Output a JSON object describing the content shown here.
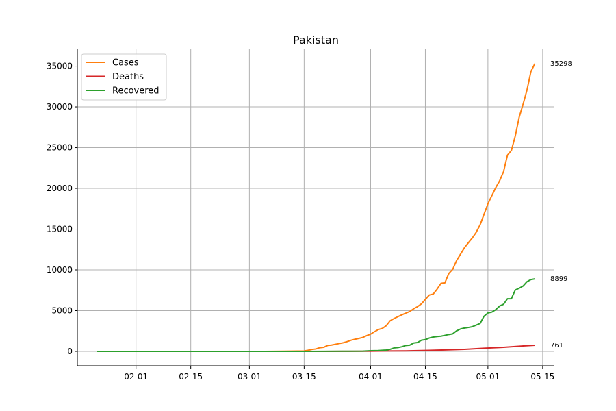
{
  "chart_data": {
    "type": "line",
    "title": "Pakistan",
    "xlabel": "",
    "ylabel": "",
    "x_axis": {
      "type": "date",
      "range": [
        "2020-01-17",
        "2020-05-18"
      ],
      "ticks": [
        "2020-02-01",
        "2020-02-15",
        "2020-03-01",
        "2020-03-15",
        "2020-04-01",
        "2020-04-15",
        "2020-05-01",
        "2020-05-15"
      ],
      "tick_labels": [
        "02-01",
        "02-15",
        "03-01",
        "03-15",
        "04-01",
        "04-15",
        "05-01",
        "05-15"
      ]
    },
    "y_axis": {
      "range": [
        -1765,
        37063
      ],
      "ticks": [
        0,
        5000,
        10000,
        15000,
        20000,
        25000,
        30000,
        35000
      ],
      "tick_labels": [
        "0",
        "5000",
        "10000",
        "15000",
        "20000",
        "25000",
        "30000",
        "35000"
      ]
    },
    "grid": true,
    "legend_position": "top-left",
    "series": [
      {
        "name": "Cases",
        "color": "#ff7f0e",
        "end_label": "35298",
        "points": [
          [
            "2020-01-22",
            0
          ],
          [
            "2020-02-25",
            0
          ],
          [
            "2020-03-01",
            4
          ],
          [
            "2020-03-05",
            5
          ],
          [
            "2020-03-10",
            19
          ],
          [
            "2020-03-15",
            53
          ],
          [
            "2020-03-16",
            136
          ],
          [
            "2020-03-17",
            236
          ],
          [
            "2020-03-18",
            299
          ],
          [
            "2020-03-19",
            454
          ],
          [
            "2020-03-20",
            501
          ],
          [
            "2020-03-21",
            730
          ],
          [
            "2020-03-22",
            776
          ],
          [
            "2020-03-23",
            875
          ],
          [
            "2020-03-24",
            972
          ],
          [
            "2020-03-25",
            1063
          ],
          [
            "2020-03-26",
            1201
          ],
          [
            "2020-03-27",
            1373
          ],
          [
            "2020-03-28",
            1495
          ],
          [
            "2020-03-29",
            1597
          ],
          [
            "2020-03-30",
            1717
          ],
          [
            "2020-03-31",
            1938
          ],
          [
            "2020-04-01",
            2118
          ],
          [
            "2020-04-02",
            2421
          ],
          [
            "2020-04-03",
            2686
          ],
          [
            "2020-04-04",
            2818
          ],
          [
            "2020-04-05",
            3157
          ],
          [
            "2020-04-06",
            3766
          ],
          [
            "2020-04-07",
            4035
          ],
          [
            "2020-04-08",
            4263
          ],
          [
            "2020-04-09",
            4489
          ],
          [
            "2020-04-10",
            4695
          ],
          [
            "2020-04-11",
            4892
          ],
          [
            "2020-04-12",
            5230
          ],
          [
            "2020-04-13",
            5496
          ],
          [
            "2020-04-14",
            5837
          ],
          [
            "2020-04-15",
            6383
          ],
          [
            "2020-04-16",
            6919
          ],
          [
            "2020-04-17",
            7025
          ],
          [
            "2020-04-18",
            7638
          ],
          [
            "2020-04-19",
            8348
          ],
          [
            "2020-04-20",
            8418
          ],
          [
            "2020-04-21",
            9565
          ],
          [
            "2020-04-22",
            10076
          ],
          [
            "2020-04-23",
            11155
          ],
          [
            "2020-04-24",
            11940
          ],
          [
            "2020-04-25",
            12723
          ],
          [
            "2020-04-26",
            13328
          ],
          [
            "2020-04-27",
            13915
          ],
          [
            "2020-04-28",
            14612
          ],
          [
            "2020-04-29",
            15525
          ],
          [
            "2020-04-30",
            16817
          ],
          [
            "2020-05-01",
            18114
          ],
          [
            "2020-05-02",
            19103
          ],
          [
            "2020-05-03",
            20084
          ],
          [
            "2020-05-04",
            20941
          ],
          [
            "2020-05-05",
            22049
          ],
          [
            "2020-05-06",
            24073
          ],
          [
            "2020-05-07",
            24644
          ],
          [
            "2020-05-08",
            26435
          ],
          [
            "2020-05-09",
            28736
          ],
          [
            "2020-05-10",
            30334
          ],
          [
            "2020-05-11",
            32081
          ],
          [
            "2020-05-12",
            34336
          ],
          [
            "2020-05-13",
            35298
          ]
        ]
      },
      {
        "name": "Deaths",
        "color": "#d62728",
        "end_label": "761",
        "points": [
          [
            "2020-01-22",
            0
          ],
          [
            "2020-03-18",
            0
          ],
          [
            "2020-03-20",
            3
          ],
          [
            "2020-03-25",
            7
          ],
          [
            "2020-03-31",
            25
          ],
          [
            "2020-04-05",
            50
          ],
          [
            "2020-04-10",
            66
          ],
          [
            "2020-04-15",
            111
          ],
          [
            "2020-04-20",
            176
          ],
          [
            "2020-04-25",
            253
          ],
          [
            "2020-04-30",
            385
          ],
          [
            "2020-05-05",
            506
          ],
          [
            "2020-05-10",
            667
          ],
          [
            "2020-05-13",
            761
          ]
        ]
      },
      {
        "name": "Recovered",
        "color": "#2ca02c",
        "end_label": "8899",
        "points": [
          [
            "2020-01-22",
            0
          ],
          [
            "2020-03-15",
            2
          ],
          [
            "2020-03-20",
            13
          ],
          [
            "2020-03-25",
            21
          ],
          [
            "2020-03-30",
            29
          ],
          [
            "2020-04-01",
            82
          ],
          [
            "2020-04-03",
            107
          ],
          [
            "2020-04-05",
            170
          ],
          [
            "2020-04-06",
            257
          ],
          [
            "2020-04-07",
            429
          ],
          [
            "2020-04-08",
            467
          ],
          [
            "2020-04-09",
            572
          ],
          [
            "2020-04-10",
            727
          ],
          [
            "2020-04-11",
            762
          ],
          [
            "2020-04-12",
            1028
          ],
          [
            "2020-04-13",
            1095
          ],
          [
            "2020-04-14",
            1378
          ],
          [
            "2020-04-15",
            1446
          ],
          [
            "2020-04-16",
            1645
          ],
          [
            "2020-04-17",
            1765
          ],
          [
            "2020-04-18",
            1832
          ],
          [
            "2020-04-19",
            1868
          ],
          [
            "2020-04-20",
            1970
          ],
          [
            "2020-04-21",
            2073
          ],
          [
            "2020-04-22",
            2156
          ],
          [
            "2020-04-23",
            2527
          ],
          [
            "2020-04-24",
            2755
          ],
          [
            "2020-04-25",
            2866
          ],
          [
            "2020-04-26",
            2936
          ],
          [
            "2020-04-27",
            3029
          ],
          [
            "2020-04-28",
            3233
          ],
          [
            "2020-04-29",
            3425
          ],
          [
            "2020-04-30",
            4315
          ],
          [
            "2020-05-01",
            4715
          ],
          [
            "2020-05-02",
            4817
          ],
          [
            "2020-05-03",
            5114
          ],
          [
            "2020-05-04",
            5570
          ],
          [
            "2020-05-05",
            5782
          ],
          [
            "2020-05-06",
            6464
          ],
          [
            "2020-05-07",
            6464
          ],
          [
            "2020-05-08",
            7530
          ],
          [
            "2020-05-09",
            7756
          ],
          [
            "2020-05-10",
            8023
          ],
          [
            "2020-05-11",
            8555
          ],
          [
            "2020-05-12",
            8812
          ],
          [
            "2020-05-13",
            8899
          ]
        ]
      }
    ]
  }
}
